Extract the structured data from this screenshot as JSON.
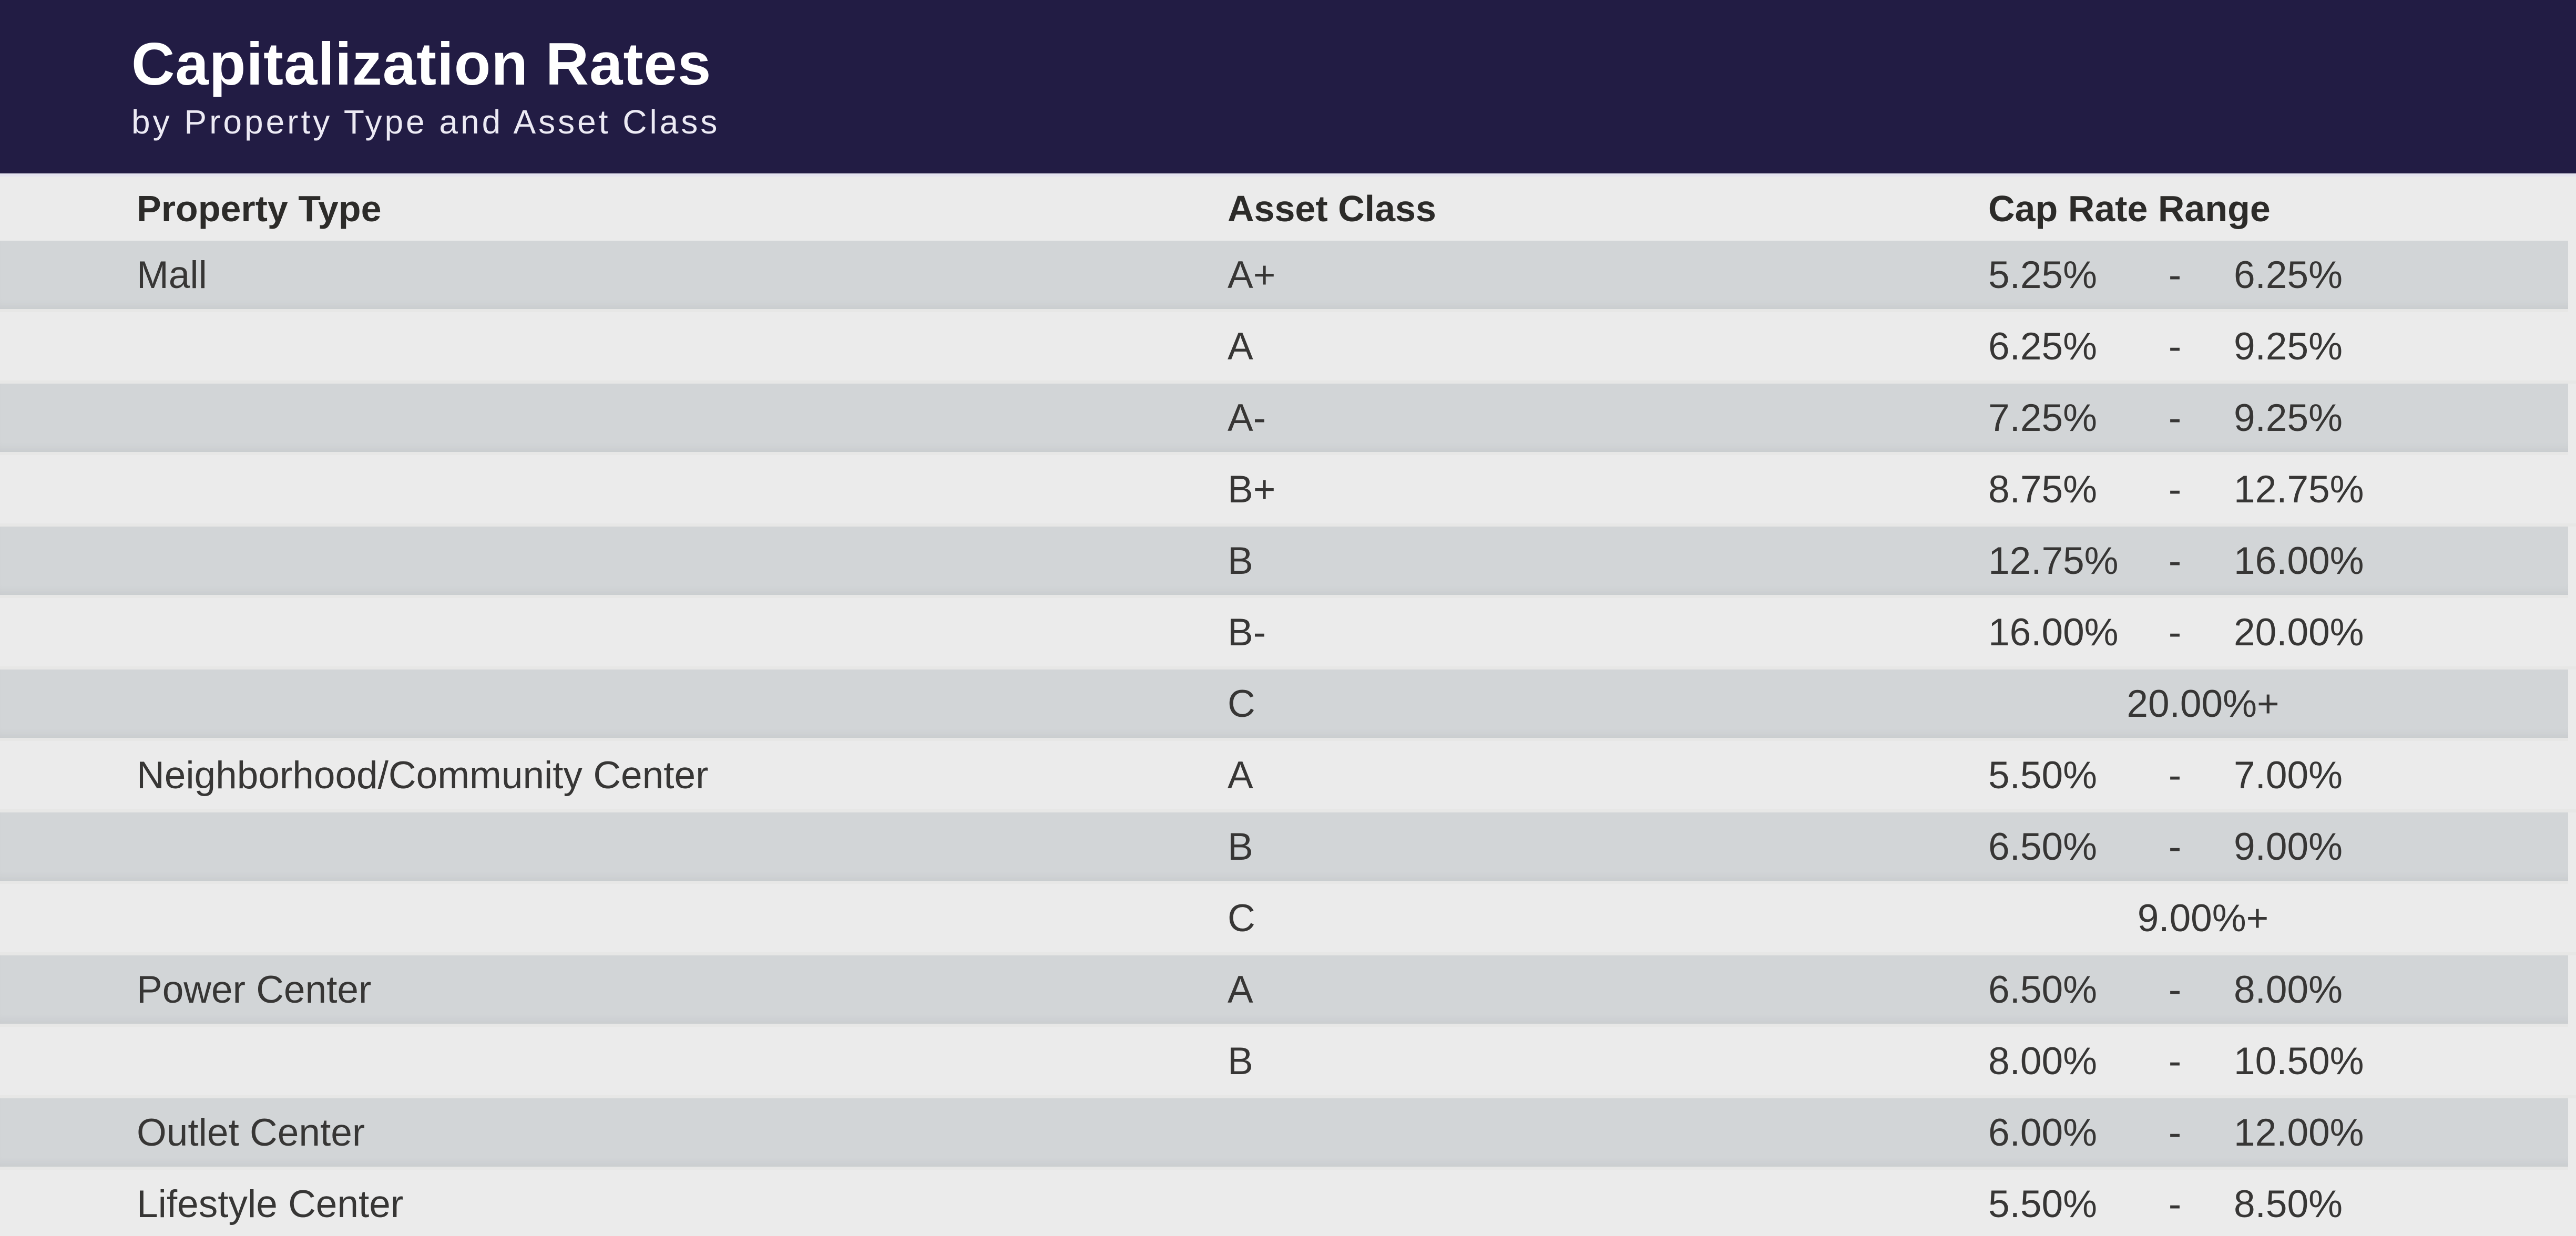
{
  "banner": {
    "title": "Capitalization Rates",
    "subtitle": "by Property Type and Asset Class"
  },
  "table": {
    "headers": {
      "property": "Property Type",
      "asset": "Asset Class",
      "range": "Cap Rate Range"
    },
    "dash": "-",
    "rows": [
      {
        "property": "Mall",
        "asset": "A+",
        "low": "5.25%",
        "high": "6.25%"
      },
      {
        "property": "",
        "asset": "A",
        "low": "6.25%",
        "high": "9.25%"
      },
      {
        "property": "",
        "asset": "A-",
        "low": "7.25%",
        "high": "9.25%"
      },
      {
        "property": "",
        "asset": "B+",
        "low": "8.75%",
        "high": "12.75%"
      },
      {
        "property": "",
        "asset": "B",
        "low": "12.75%",
        "high": "16.00%"
      },
      {
        "property": "",
        "asset": "B-",
        "low": "16.00%",
        "high": "20.00%"
      },
      {
        "property": "",
        "asset": "C",
        "combined": "20.00%+"
      },
      {
        "property": "Neighborhood/Community Center",
        "asset": "A",
        "low": "5.50%",
        "high": "7.00%"
      },
      {
        "property": "",
        "asset": "B",
        "low": "6.50%",
        "high": "9.00%"
      },
      {
        "property": "",
        "asset": "C",
        "combined": "9.00%+"
      },
      {
        "property": "Power Center",
        "asset": "A",
        "low": "6.50%",
        "high": "8.00%"
      },
      {
        "property": "",
        "asset": "B",
        "low": "8.00%",
        "high": "10.50%"
      },
      {
        "property": "Outlet Center",
        "asset": "",
        "low": "6.00%",
        "high": "12.00%"
      },
      {
        "property": "Lifestyle Center",
        "asset": "",
        "low": "5.50%",
        "high": "8.50%"
      }
    ]
  },
  "colors": {
    "banner_bg": "#221c44",
    "banner_underline": "#e4e3ee",
    "page_bg": "#ebebeb",
    "shaded_row_bg": "#d2d5d7",
    "text_dark": "#373635"
  },
  "chart_data": {
    "type": "table",
    "title": "Capitalization Rates",
    "subtitle": "by Property Type and Asset Class",
    "columns": [
      "Property Type",
      "Asset Class",
      "Cap Rate Low",
      "Cap Rate High"
    ],
    "rows": [
      [
        "Mall",
        "A+",
        "5.25%",
        "6.25%"
      ],
      [
        "Mall",
        "A",
        "6.25%",
        "9.25%"
      ],
      [
        "Mall",
        "A-",
        "7.25%",
        "9.25%"
      ],
      [
        "Mall",
        "B+",
        "8.75%",
        "12.75%"
      ],
      [
        "Mall",
        "B",
        "12.75%",
        "16.00%"
      ],
      [
        "Mall",
        "B-",
        "16.00%",
        "20.00%"
      ],
      [
        "Mall",
        "C",
        "20.00%+",
        ""
      ],
      [
        "Neighborhood/Community Center",
        "A",
        "5.50%",
        "7.00%"
      ],
      [
        "Neighborhood/Community Center",
        "B",
        "6.50%",
        "9.00%"
      ],
      [
        "Neighborhood/Community Center",
        "C",
        "9.00%+",
        ""
      ],
      [
        "Power Center",
        "A",
        "6.50%",
        "8.00%"
      ],
      [
        "Power Center",
        "B",
        "8.00%",
        "10.50%"
      ],
      [
        "Outlet Center",
        "",
        "6.00%",
        "12.00%"
      ],
      [
        "Lifestyle Center",
        "",
        "5.50%",
        "8.50%"
      ]
    ]
  }
}
